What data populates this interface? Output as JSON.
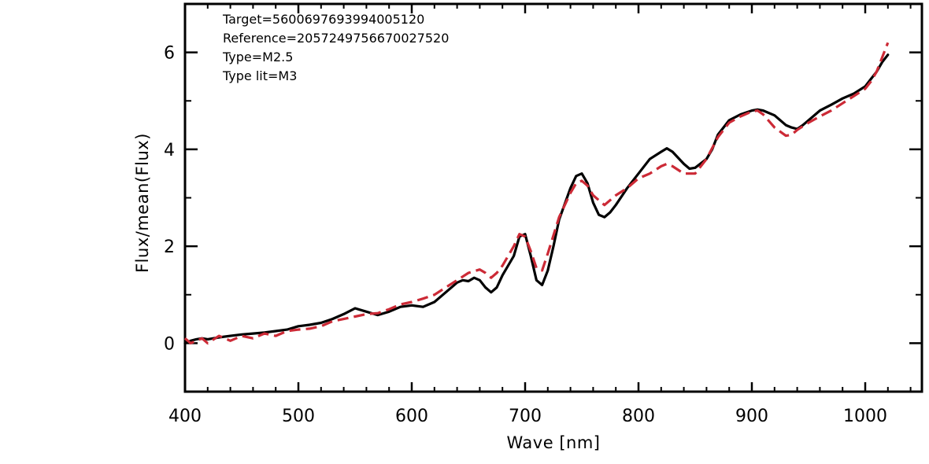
{
  "chart_data": {
    "type": "line",
    "xlabel": "Wave [nm]",
    "ylabel": "Flux/mean(Flux)",
    "xlim": [
      400,
      1050
    ],
    "ylim": [
      -1,
      7
    ],
    "x_ticks": [
      400,
      500,
      600,
      700,
      800,
      900,
      1000
    ],
    "y_ticks": [
      0,
      2,
      4,
      6
    ],
    "annotations": [
      "Target=5600697693994005120",
      "Reference=2057249756670027520",
      "Type=M2.5",
      "Type lit=M3"
    ],
    "grid": false,
    "legend": "none",
    "series": [
      {
        "style": "solid",
        "color": "#000000",
        "x": [
          400,
          405,
          410,
          415,
          420,
          430,
          440,
          450,
          460,
          470,
          480,
          490,
          500,
          510,
          520,
          530,
          540,
          550,
          560,
          570,
          580,
          590,
          600,
          610,
          620,
          630,
          640,
          645,
          650,
          655,
          660,
          665,
          670,
          675,
          680,
          690,
          695,
          700,
          705,
          710,
          715,
          720,
          725,
          730,
          740,
          745,
          750,
          755,
          760,
          765,
          770,
          775,
          780,
          790,
          800,
          810,
          820,
          825,
          830,
          840,
          845,
          850,
          860,
          865,
          870,
          880,
          890,
          900,
          905,
          910,
          920,
          930,
          935,
          940,
          945,
          950,
          960,
          970,
          980,
          990,
          1000,
          1005,
          1010,
          1015,
          1020
        ],
        "y": [
          0.0,
          0.05,
          0.08,
          0.1,
          0.08,
          0.12,
          0.15,
          0.18,
          0.2,
          0.22,
          0.25,
          0.28,
          0.35,
          0.38,
          0.42,
          0.5,
          0.6,
          0.72,
          0.65,
          0.58,
          0.65,
          0.75,
          0.78,
          0.75,
          0.85,
          1.05,
          1.25,
          1.3,
          1.28,
          1.35,
          1.3,
          1.15,
          1.05,
          1.15,
          1.4,
          1.8,
          2.2,
          2.25,
          1.8,
          1.3,
          1.2,
          1.5,
          2.0,
          2.55,
          3.2,
          3.45,
          3.5,
          3.3,
          2.9,
          2.65,
          2.6,
          2.7,
          2.85,
          3.2,
          3.5,
          3.8,
          3.95,
          4.02,
          3.95,
          3.7,
          3.6,
          3.62,
          3.8,
          4.0,
          4.3,
          4.6,
          4.72,
          4.8,
          4.82,
          4.8,
          4.7,
          4.5,
          4.45,
          4.42,
          4.5,
          4.6,
          4.8,
          4.92,
          5.05,
          5.15,
          5.3,
          5.45,
          5.6,
          5.8,
          5.95
        ]
      },
      {
        "style": "dashed",
        "color": "#cc2a36",
        "x": [
          400,
          405,
          410,
          415,
          420,
          430,
          440,
          450,
          460,
          470,
          480,
          490,
          500,
          510,
          520,
          530,
          540,
          550,
          560,
          570,
          580,
          590,
          600,
          610,
          620,
          630,
          640,
          650,
          660,
          665,
          670,
          675,
          680,
          690,
          695,
          700,
          705,
          710,
          715,
          720,
          730,
          740,
          745,
          750,
          755,
          760,
          770,
          780,
          790,
          800,
          810,
          820,
          825,
          830,
          840,
          850,
          860,
          870,
          880,
          890,
          900,
          905,
          910,
          920,
          930,
          935,
          940,
          950,
          960,
          970,
          980,
          990,
          1000,
          1005,
          1010,
          1015,
          1020
        ],
        "y": [
          0.1,
          0.0,
          0.05,
          0.1,
          0.0,
          0.15,
          0.05,
          0.15,
          0.1,
          0.2,
          0.15,
          0.25,
          0.28,
          0.3,
          0.35,
          0.45,
          0.5,
          0.55,
          0.6,
          0.62,
          0.7,
          0.8,
          0.85,
          0.92,
          1.0,
          1.15,
          1.3,
          1.45,
          1.52,
          1.45,
          1.35,
          1.45,
          1.6,
          2.0,
          2.25,
          2.2,
          1.9,
          1.55,
          1.5,
          1.85,
          2.6,
          3.1,
          3.3,
          3.35,
          3.25,
          3.05,
          2.85,
          3.05,
          3.2,
          3.4,
          3.5,
          3.65,
          3.7,
          3.65,
          3.5,
          3.5,
          3.8,
          4.25,
          4.55,
          4.68,
          4.78,
          4.8,
          4.72,
          4.45,
          4.28,
          4.3,
          4.4,
          4.55,
          4.68,
          4.8,
          4.95,
          5.1,
          5.25,
          5.4,
          5.6,
          5.9,
          6.2
        ]
      }
    ]
  }
}
